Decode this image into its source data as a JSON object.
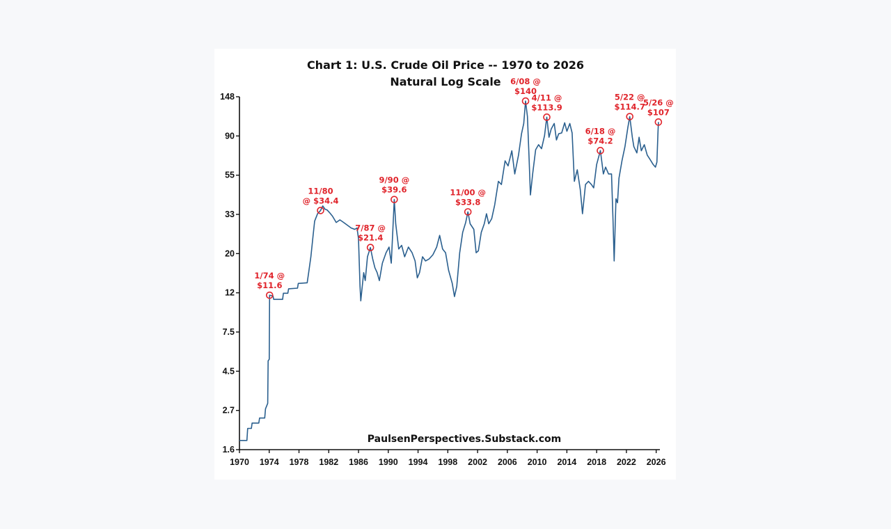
{
  "chart_data": {
    "type": "line",
    "title": "Chart 1: U.S. Crude Oil Price -- 1970 to 2026",
    "subtitle": "Natural Log Scale",
    "credit": "PaulsenPerspectives.Substack.com",
    "scale": "log",
    "ylim": [
      1.6,
      148
    ],
    "xlim": [
      1970,
      2026.5
    ],
    "grid": false,
    "y_ticks": [
      "148",
      "90",
      "55",
      "33",
      "20",
      "12",
      "7.5",
      "4.5",
      "2.7",
      "1.6"
    ],
    "x_ticks": [
      "1970",
      "1974",
      "1978",
      "1982",
      "1986",
      "1990",
      "1994",
      "1998",
      "2002",
      "2006",
      "2010",
      "2014",
      "2018",
      "2022",
      "2026"
    ],
    "line_color": "#2a5f8e",
    "annotation_color": "#e0242b",
    "series": [
      {
        "points": [
          [
            1970.0,
            1.8
          ],
          [
            1971.0,
            1.8
          ],
          [
            1971.1,
            2.1
          ],
          [
            1971.6,
            2.1
          ],
          [
            1971.7,
            2.25
          ],
          [
            1972.6,
            2.25
          ],
          [
            1972.7,
            2.4
          ],
          [
            1973.4,
            2.4
          ],
          [
            1973.5,
            2.7
          ],
          [
            1973.8,
            2.9
          ],
          [
            1973.85,
            5.0
          ],
          [
            1974.0,
            5.1
          ],
          [
            1974.05,
            11.6
          ],
          [
            1974.5,
            11.5
          ],
          [
            1974.6,
            11.0
          ],
          [
            1975.8,
            11.0
          ],
          [
            1975.9,
            11.9
          ],
          [
            1976.5,
            11.9
          ],
          [
            1976.6,
            12.6
          ],
          [
            1977.8,
            12.7
          ],
          [
            1977.9,
            13.5
          ],
          [
            1979.1,
            13.6
          ],
          [
            1979.3,
            15.5
          ],
          [
            1979.6,
            19.0
          ],
          [
            1979.9,
            25.0
          ],
          [
            1980.1,
            30.0
          ],
          [
            1980.5,
            33.0
          ],
          [
            1980.9,
            34.4
          ],
          [
            1981.2,
            36.5
          ],
          [
            1981.5,
            35.0
          ],
          [
            1981.8,
            34.6
          ],
          [
            1982.1,
            33.5
          ],
          [
            1982.5,
            32.0
          ],
          [
            1983.0,
            29.5
          ],
          [
            1983.5,
            30.5
          ],
          [
            1984.0,
            29.5
          ],
          [
            1984.5,
            28.5
          ],
          [
            1985.0,
            27.5
          ],
          [
            1985.5,
            27.0
          ],
          [
            1985.8,
            27.5
          ],
          [
            1986.0,
            24.0
          ],
          [
            1986.2,
            13.0
          ],
          [
            1986.3,
            10.8
          ],
          [
            1986.5,
            13.0
          ],
          [
            1986.7,
            15.5
          ],
          [
            1986.9,
            14.0
          ],
          [
            1987.2,
            19.0
          ],
          [
            1987.6,
            21.4
          ],
          [
            1987.9,
            18.5
          ],
          [
            1988.2,
            16.5
          ],
          [
            1988.5,
            15.5
          ],
          [
            1988.8,
            14.0
          ],
          [
            1989.2,
            17.5
          ],
          [
            1989.7,
            20.0
          ],
          [
            1990.1,
            21.5
          ],
          [
            1990.4,
            17.5
          ],
          [
            1990.6,
            26.0
          ],
          [
            1990.8,
            39.6
          ],
          [
            1991.0,
            29.0
          ],
          [
            1991.4,
            21.0
          ],
          [
            1991.8,
            22.0
          ],
          [
            1992.2,
            19.0
          ],
          [
            1992.7,
            21.5
          ],
          [
            1993.2,
            20.0
          ],
          [
            1993.6,
            18.0
          ],
          [
            1993.9,
            14.5
          ],
          [
            1994.2,
            15.5
          ],
          [
            1994.6,
            19.0
          ],
          [
            1995.0,
            18.0
          ],
          [
            1995.5,
            18.5
          ],
          [
            1996.0,
            19.5
          ],
          [
            1996.5,
            21.5
          ],
          [
            1996.9,
            25.0
          ],
          [
            1997.3,
            21.0
          ],
          [
            1997.7,
            20.0
          ],
          [
            1998.1,
            16.0
          ],
          [
            1998.6,
            13.5
          ],
          [
            1998.9,
            11.4
          ],
          [
            1999.2,
            13.0
          ],
          [
            1999.6,
            20.0
          ],
          [
            2000.0,
            26.0
          ],
          [
            2000.4,
            29.5
          ],
          [
            2000.7,
            33.8
          ],
          [
            2001.0,
            29.0
          ],
          [
            2001.5,
            27.0
          ],
          [
            2001.8,
            20.0
          ],
          [
            2002.1,
            20.5
          ],
          [
            2002.5,
            26.0
          ],
          [
            2002.9,
            29.0
          ],
          [
            2003.2,
            33.0
          ],
          [
            2003.5,
            29.0
          ],
          [
            2003.9,
            31.0
          ],
          [
            2004.3,
            37.0
          ],
          [
            2004.8,
            50.0
          ],
          [
            2005.2,
            48.0
          ],
          [
            2005.7,
            65.0
          ],
          [
            2006.1,
            61.0
          ],
          [
            2006.6,
            74.0
          ],
          [
            2007.0,
            55.0
          ],
          [
            2007.5,
            70.0
          ],
          [
            2007.9,
            92.0
          ],
          [
            2008.2,
            105.0
          ],
          [
            2008.45,
            140.0
          ],
          [
            2008.7,
            115.0
          ],
          [
            2008.9,
            70.0
          ],
          [
            2009.1,
            42.0
          ],
          [
            2009.4,
            55.0
          ],
          [
            2009.8,
            75.0
          ],
          [
            2010.2,
            80.0
          ],
          [
            2010.6,
            76.0
          ],
          [
            2011.0,
            90.0
          ],
          [
            2011.3,
            113.9
          ],
          [
            2011.6,
            88.0
          ],
          [
            2011.9,
            98.0
          ],
          [
            2012.3,
            105.0
          ],
          [
            2012.6,
            85.0
          ],
          [
            2012.9,
            92.0
          ],
          [
            2013.3,
            93.0
          ],
          [
            2013.7,
            106.0
          ],
          [
            2014.0,
            95.0
          ],
          [
            2014.4,
            105.0
          ],
          [
            2014.7,
            93.0
          ],
          [
            2015.0,
            50.0
          ],
          [
            2015.4,
            58.0
          ],
          [
            2015.8,
            45.0
          ],
          [
            2016.1,
            33.0
          ],
          [
            2016.5,
            48.0
          ],
          [
            2016.9,
            50.0
          ],
          [
            2017.3,
            48.0
          ],
          [
            2017.6,
            46.0
          ],
          [
            2018.0,
            62.0
          ],
          [
            2018.5,
            74.2
          ],
          [
            2018.9,
            55.0
          ],
          [
            2019.2,
            60.0
          ],
          [
            2019.6,
            55.0
          ],
          [
            2020.0,
            55.0
          ],
          [
            2020.2,
            30.0
          ],
          [
            2020.35,
            18.0
          ],
          [
            2020.6,
            40.0
          ],
          [
            2020.8,
            38.0
          ],
          [
            2021.0,
            52.0
          ],
          [
            2021.4,
            65.0
          ],
          [
            2021.8,
            78.0
          ],
          [
            2022.2,
            100.0
          ],
          [
            2022.45,
            114.7
          ],
          [
            2022.8,
            88.0
          ],
          [
            2023.0,
            78.0
          ],
          [
            2023.4,
            72.0
          ],
          [
            2023.7,
            88.0
          ],
          [
            2024.0,
            74.0
          ],
          [
            2024.4,
            80.0
          ],
          [
            2024.8,
            70.0
          ],
          [
            2025.2,
            66.0
          ],
          [
            2025.6,
            62.0
          ],
          [
            2025.9,
            60.0
          ],
          [
            2026.1,
            64.0
          ],
          [
            2026.25,
            95.0
          ],
          [
            2026.3,
            107.0
          ]
        ]
      }
    ],
    "annotations": [
      {
        "x": 1974.05,
        "y": 11.6,
        "lines": [
          "1/74 @",
          "$11.6"
        ]
      },
      {
        "x": 1980.9,
        "y": 34.4,
        "lines": [
          "11/80",
          "@ $34.4"
        ]
      },
      {
        "x": 1987.6,
        "y": 21.4,
        "lines": [
          "7/87 @",
          "$21.4"
        ]
      },
      {
        "x": 1990.8,
        "y": 39.6,
        "lines": [
          "9/90 @",
          "$39.6"
        ]
      },
      {
        "x": 2000.7,
        "y": 33.8,
        "lines": [
          "11/00 @",
          "$33.8"
        ]
      },
      {
        "x": 2008.45,
        "y": 140.0,
        "lines": [
          "6/08 @",
          "$140"
        ]
      },
      {
        "x": 2011.3,
        "y": 113.9,
        "lines": [
          "4/11 @",
          "$113.9"
        ]
      },
      {
        "x": 2018.5,
        "y": 74.2,
        "lines": [
          "6/18 @",
          "$74.2"
        ]
      },
      {
        "x": 2022.45,
        "y": 114.7,
        "lines": [
          "5/22 @",
          "$114.7"
        ]
      },
      {
        "x": 2026.3,
        "y": 107.0,
        "lines": [
          "5/26 @",
          "$107"
        ]
      }
    ]
  }
}
